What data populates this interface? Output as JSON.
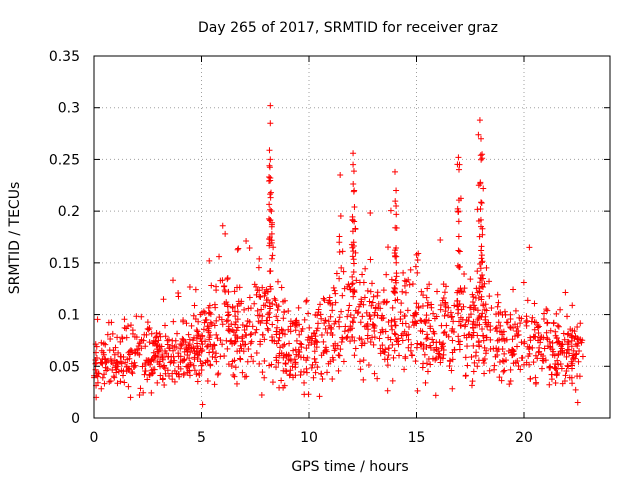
{
  "chart_data": {
    "type": "scatter",
    "title": "Day 265 of 2017, SRMTID for receiver graz",
    "xlabel": "GPS time / hours",
    "ylabel": "SRMTID / TECUs",
    "xlim": [
      0,
      24
    ],
    "ylim": [
      0,
      0.35
    ],
    "xticks": [
      0,
      5,
      10,
      15,
      20
    ],
    "xtick_labels": [
      "0",
      "5",
      "10",
      "15",
      "20"
    ],
    "yticks": [
      0,
      0.05,
      0.1,
      0.15,
      0.2,
      0.25,
      0.3,
      0.35
    ],
    "ytick_labels": [
      "0",
      "0.05",
      "0.1",
      "0.15",
      "0.2",
      "0.25",
      "0.3",
      "0.35"
    ],
    "grid": true,
    "marker": "+",
    "marker_color": "#ff0000",
    "series": [
      {
        "name": "SRMTID",
        "x_range": [
          0.0,
          22.75
        ],
        "typical_band_by_hour": [
          [
            0,
            0.05
          ],
          [
            1,
            0.055
          ],
          [
            2,
            0.06
          ],
          [
            3,
            0.06
          ],
          [
            4,
            0.065
          ],
          [
            5,
            0.07
          ],
          [
            6,
            0.09
          ],
          [
            7,
            0.08
          ],
          [
            8,
            0.1
          ],
          [
            9,
            0.065
          ],
          [
            10,
            0.065
          ],
          [
            11,
            0.08
          ],
          [
            12,
            0.1
          ],
          [
            13,
            0.085
          ],
          [
            14,
            0.09
          ],
          [
            15,
            0.09
          ],
          [
            16,
            0.085
          ],
          [
            17,
            0.09
          ],
          [
            18,
            0.09
          ],
          [
            19,
            0.075
          ],
          [
            20,
            0.07
          ],
          [
            21,
            0.07
          ],
          [
            22,
            0.06
          ]
        ],
        "peaks": [
          {
            "x": 8.2,
            "y": 0.302
          },
          {
            "x": 8.2,
            "y": 0.285
          },
          {
            "x": 8.2,
            "y": 0.25
          },
          {
            "x": 8.2,
            "y": 0.232
          },
          {
            "x": 8.25,
            "y": 0.2
          },
          {
            "x": 11.45,
            "y": 0.235
          },
          {
            "x": 12.05,
            "y": 0.256
          },
          {
            "x": 12.05,
            "y": 0.245
          },
          {
            "x": 12.1,
            "y": 0.22
          },
          {
            "x": 12.1,
            "y": 0.19
          },
          {
            "x": 14.0,
            "y": 0.238
          },
          {
            "x": 14.05,
            "y": 0.22
          },
          {
            "x": 14.05,
            "y": 0.205
          },
          {
            "x": 16.95,
            "y": 0.252
          },
          {
            "x": 17.0,
            "y": 0.245
          },
          {
            "x": 16.95,
            "y": 0.2
          },
          {
            "x": 17.95,
            "y": 0.288
          },
          {
            "x": 18.0,
            "y": 0.27
          },
          {
            "x": 18.05,
            "y": 0.255
          },
          {
            "x": 17.9,
            "y": 0.225
          },
          {
            "x": 18.0,
            "y": 0.185
          },
          {
            "x": 20.25,
            "y": 0.165
          },
          {
            "x": 6.1,
            "y": 0.178
          },
          {
            "x": 0.1,
            "y": 0.02
          },
          {
            "x": 5.05,
            "y": 0.013
          },
          {
            "x": 1.7,
            "y": 0.02
          },
          {
            "x": 22.5,
            "y": 0.015
          }
        ]
      }
    ]
  }
}
